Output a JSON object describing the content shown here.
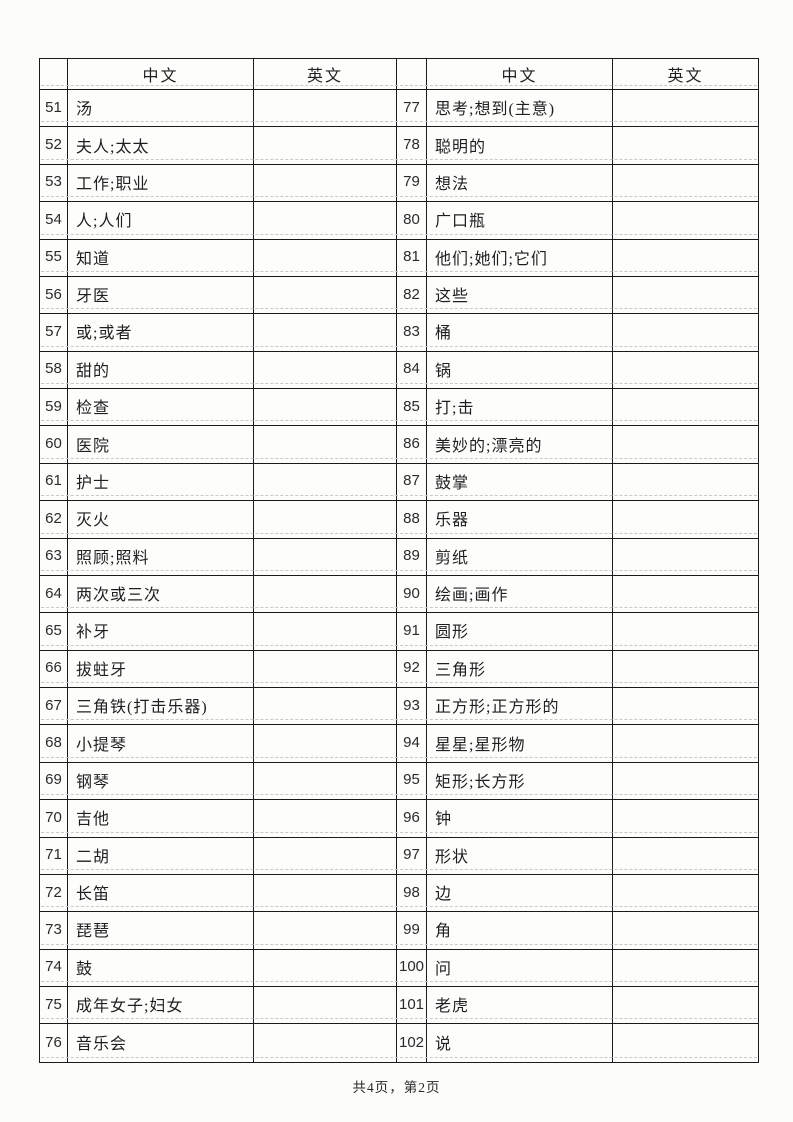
{
  "page": {
    "footer": "共4页，第2页"
  },
  "table": {
    "headers": {
      "index": "",
      "chinese": "中文",
      "english": "英文"
    },
    "left_rows": [
      {
        "num": "51",
        "cn": "汤",
        "en": ""
      },
      {
        "num": "52",
        "cn": "夫人;太太",
        "en": ""
      },
      {
        "num": "53",
        "cn": "工作;职业",
        "en": ""
      },
      {
        "num": "54",
        "cn": "人;人们",
        "en": ""
      },
      {
        "num": "55",
        "cn": "知道",
        "en": ""
      },
      {
        "num": "56",
        "cn": "牙医",
        "en": ""
      },
      {
        "num": "57",
        "cn": "或;或者",
        "en": ""
      },
      {
        "num": "58",
        "cn": "甜的",
        "en": ""
      },
      {
        "num": "59",
        "cn": "检查",
        "en": ""
      },
      {
        "num": "60",
        "cn": "医院",
        "en": ""
      },
      {
        "num": "61",
        "cn": "护士",
        "en": ""
      },
      {
        "num": "62",
        "cn": "灭火",
        "en": ""
      },
      {
        "num": "63",
        "cn": "照顾;照料",
        "en": ""
      },
      {
        "num": "64",
        "cn": "两次或三次",
        "en": ""
      },
      {
        "num": "65",
        "cn": "补牙",
        "en": ""
      },
      {
        "num": "66",
        "cn": "拔蛀牙",
        "en": ""
      },
      {
        "num": "67",
        "cn": "三角铁(打击乐器)",
        "en": ""
      },
      {
        "num": "68",
        "cn": "小提琴",
        "en": ""
      },
      {
        "num": "69",
        "cn": "钢琴",
        "en": ""
      },
      {
        "num": "70",
        "cn": "吉他",
        "en": ""
      },
      {
        "num": "71",
        "cn": "二胡",
        "en": ""
      },
      {
        "num": "72",
        "cn": "长笛",
        "en": ""
      },
      {
        "num": "73",
        "cn": "琵琶",
        "en": ""
      },
      {
        "num": "74",
        "cn": "鼓",
        "en": ""
      },
      {
        "num": "75",
        "cn": "成年女子;妇女",
        "en": ""
      },
      {
        "num": "76",
        "cn": "音乐会",
        "en": ""
      }
    ],
    "right_rows": [
      {
        "num": "77",
        "cn": "思考;想到(主意)",
        "en": ""
      },
      {
        "num": "78",
        "cn": "聪明的",
        "en": ""
      },
      {
        "num": "79",
        "cn": "想法",
        "en": ""
      },
      {
        "num": "80",
        "cn": "广口瓶",
        "en": ""
      },
      {
        "num": "81",
        "cn": "他们;她们;它们",
        "en": ""
      },
      {
        "num": "82",
        "cn": "这些",
        "en": ""
      },
      {
        "num": "83",
        "cn": "桶",
        "en": ""
      },
      {
        "num": "84",
        "cn": "锅",
        "en": ""
      },
      {
        "num": "85",
        "cn": "打;击",
        "en": ""
      },
      {
        "num": "86",
        "cn": "美妙的;漂亮的",
        "en": ""
      },
      {
        "num": "87",
        "cn": "鼓掌",
        "en": ""
      },
      {
        "num": "88",
        "cn": "乐器",
        "en": ""
      },
      {
        "num": "89",
        "cn": "剪纸",
        "en": ""
      },
      {
        "num": "90",
        "cn": "绘画;画作",
        "en": ""
      },
      {
        "num": "91",
        "cn": "圆形",
        "en": ""
      },
      {
        "num": "92",
        "cn": "三角形",
        "en": ""
      },
      {
        "num": "93",
        "cn": "正方形;正方形的",
        "en": ""
      },
      {
        "num": "94",
        "cn": "星星;星形物",
        "en": ""
      },
      {
        "num": "95",
        "cn": "矩形;长方形",
        "en": ""
      },
      {
        "num": "96",
        "cn": "钟",
        "en": ""
      },
      {
        "num": "97",
        "cn": "形状",
        "en": ""
      },
      {
        "num": "98",
        "cn": "边",
        "en": ""
      },
      {
        "num": "99",
        "cn": "角",
        "en": ""
      },
      {
        "num": "100",
        "cn": "问",
        "en": ""
      },
      {
        "num": "101",
        "cn": "老虎",
        "en": ""
      },
      {
        "num": "102",
        "cn": "说",
        "en": ""
      }
    ]
  }
}
